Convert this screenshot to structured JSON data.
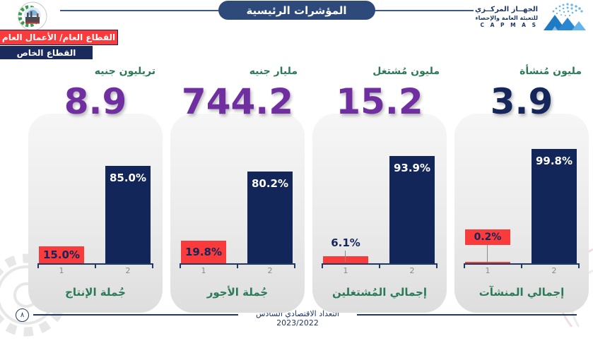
{
  "header": {
    "title": "المؤشرات الرئيسية",
    "capmas": {
      "line1": "الجهــاز المركــزي",
      "line2": "للتعبئة العامة والإحصاء",
      "line3": "C A P M A S"
    }
  },
  "legend": {
    "public_label": "القطاع العام/ الأعمال العام",
    "private_label": "القطاع الخاص"
  },
  "colors": {
    "navy_bar": "#12265a",
    "red_bar": "#f93b3b",
    "purple_number": "#6f2fa0",
    "navy_number": "#14265a",
    "green_label": "#2a7a57",
    "accent_line": "#1f3864"
  },
  "footer": {
    "text": "التعداد الاقتصادي السادس 2023/2022",
    "page_number": "٨"
  },
  "chart_data": [
    {
      "id": "production",
      "type": "bar",
      "unit": "تريليون جنيه",
      "big_value": "8.9",
      "big_color": "#6f2fa0",
      "title": "جُملة الإنتاج",
      "categories": [
        "1",
        "2"
      ],
      "ylim": [
        0,
        100
      ],
      "series": [
        {
          "name": "القطاع العام/ الأعمال العام",
          "value": 15.0,
          "label": "15.0%",
          "label_style": "inside"
        },
        {
          "name": "القطاع الخاص",
          "value": 85.0,
          "label": "85.0%",
          "label_style": "inside-top"
        }
      ]
    },
    {
      "id": "wages",
      "type": "bar",
      "unit": "مليار جنيه",
      "big_value": "744.2",
      "big_color": "#6f2fa0",
      "title": "جُملة الأجور",
      "categories": [
        "1",
        "2"
      ],
      "ylim": [
        0,
        100
      ],
      "series": [
        {
          "name": "القطاع العام/ الأعمال العام",
          "value": 19.8,
          "label": "19.8%",
          "label_style": "inside"
        },
        {
          "name": "القطاع الخاص",
          "value": 80.2,
          "label": "80.2%",
          "label_style": "inside-top"
        }
      ]
    },
    {
      "id": "workers",
      "type": "bar",
      "unit": "مليون مُشتغل",
      "big_value": "15.2",
      "big_color": "#6f2fa0",
      "title": "إجمالي المُشتغلين",
      "categories": [
        "1",
        "2"
      ],
      "ylim": [
        0,
        100
      ],
      "series": [
        {
          "name": "القطاع العام/ الأعمال العام",
          "value": 6.1,
          "label": "6.1%",
          "label_style": "above"
        },
        {
          "name": "القطاع الخاص",
          "value": 93.9,
          "label": "93.9%",
          "label_style": "inside-top"
        }
      ]
    },
    {
      "id": "establishments",
      "type": "bar",
      "unit": "مليون مُنشأة",
      "big_value": "3.9",
      "big_color": "#14265a",
      "title": "إجمالي المنشآت",
      "categories": [
        "1",
        "2"
      ],
      "ylim": [
        0,
        100
      ],
      "series": [
        {
          "name": "القطاع العام/ الأعمال العام",
          "value": 0.2,
          "label": "0.2%",
          "label_style": "callout"
        },
        {
          "name": "القطاع الخاص",
          "value": 99.8,
          "label": "99.8%",
          "label_style": "inside-top"
        }
      ]
    }
  ]
}
